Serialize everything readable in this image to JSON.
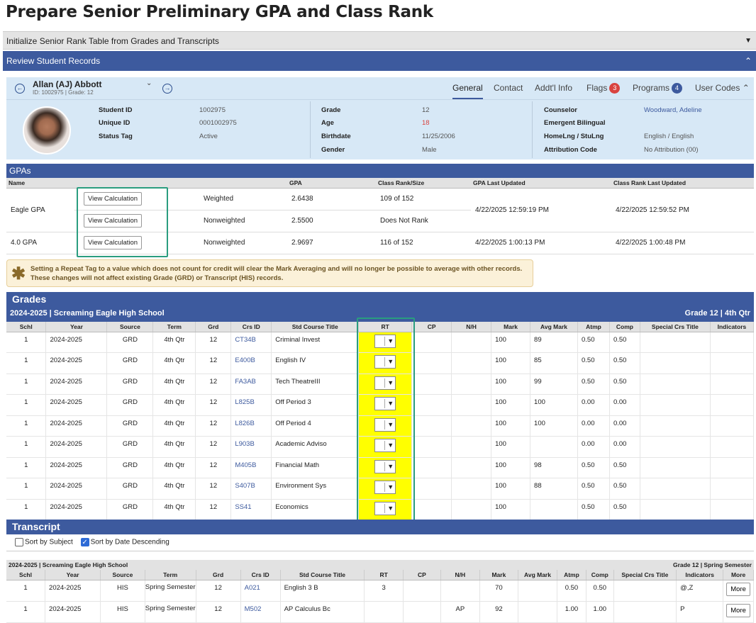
{
  "page_title": "Prepare Senior Preliminary GPA and Class Rank",
  "init_section": {
    "label": "Initialize Senior Rank Table from Grades and Transcripts",
    "icon": "chevron-down-icon"
  },
  "review_section": {
    "label": "Review Student Records",
    "icon": "chevron-up-icon"
  },
  "student": {
    "name": "Allan (AJ) Abbott",
    "sub": "ID: 1002975 |  Grade: 12",
    "tabs": [
      {
        "label": "General",
        "active": true
      },
      {
        "label": "Contact"
      },
      {
        "label": "Addt'l Info"
      },
      {
        "label": "Flags",
        "badge": "3",
        "badge_color": "#d9433f"
      },
      {
        "label": "Programs",
        "badge": "4",
        "badge_color": "#3d5a9e"
      },
      {
        "label": "User Codes"
      }
    ],
    "col1": [
      {
        "label": "Student ID",
        "value": "1002975"
      },
      {
        "label": "Unique ID",
        "value": "0001002975"
      },
      {
        "label": "Status Tag",
        "value": "Active"
      }
    ],
    "col2": [
      {
        "label": "Grade",
        "value": "12"
      },
      {
        "label": "Age",
        "value": "18"
      },
      {
        "label": "Birthdate",
        "value": "11/25/2006"
      },
      {
        "label": "Gender",
        "value": "Male"
      }
    ],
    "col3": [
      {
        "label": "Counselor",
        "value": "Woodward, Adeline"
      },
      {
        "label": "Emergent Bilingual",
        "value": ""
      },
      {
        "label": "HomeLng / StuLng",
        "value": "English / English"
      },
      {
        "label": "Attribution Code",
        "value": "No Attribution (00)"
      }
    ],
    "age_color": "#d9433f",
    "counselor_color": "#3d5a9e"
  },
  "gpas": {
    "title": "GPAs",
    "headers": [
      "Name",
      "",
      "",
      "GPA",
      "Class Rank/Size",
      "GPA Last Updated",
      "Class Rank Last Updated"
    ],
    "button_label": "View Calculation",
    "rows": [
      {
        "name": "Eagle GPA",
        "type": "Weighted",
        "gpa": "2.6438",
        "rank": "109 of 152",
        "gpa_updated": "4/22/2025 12:59:19 PM",
        "rank_updated": "4/22/2025 12:59:52 PM"
      },
      {
        "name": "",
        "type": "Nonweighted",
        "gpa": "2.5500",
        "rank": "Does Not Rank",
        "gpa_updated": "",
        "rank_updated": ""
      },
      {
        "name": "4.0 GPA",
        "type": "Nonweighted",
        "gpa": "2.9697",
        "rank": "116 of 152",
        "gpa_updated": "4/22/2025 1:00:13 PM",
        "rank_updated": "4/22/2025 1:00:48 PM"
      }
    ]
  },
  "notice": {
    "line1": "Setting a Repeat Tag to a value which does not count for credit will clear the Mark Averaging and will no longer be possible to average with other records.",
    "line2": "These changes will not affect existing Grade (GRD) or Transcript (HIS) records."
  },
  "grades": {
    "title": "Grades",
    "subtitle_left": "2024-2025 | Screaming Eagle High School",
    "subtitle_right": "Grade 12 | 4th Qtr",
    "headers": [
      "Schl",
      "Year",
      "Source",
      "Term",
      "Grd",
      "Crs ID",
      "Std Course Title",
      "RT",
      "CP",
      "N/H",
      "Mark",
      "Avg Mark",
      "Atmp",
      "Comp",
      "Special Crs Title",
      "Indicators"
    ],
    "rows": [
      [
        "1",
        "2024-2025",
        "GRD",
        "4th Qtr",
        "12",
        "CT34B",
        "Criminal Invest",
        "",
        "",
        "",
        "100",
        "89",
        "0.50",
        "0.50",
        "",
        ""
      ],
      [
        "1",
        "2024-2025",
        "GRD",
        "4th Qtr",
        "12",
        "E400B",
        "English IV",
        "",
        "",
        "",
        "100",
        "85",
        "0.50",
        "0.50",
        "",
        ""
      ],
      [
        "1",
        "2024-2025",
        "GRD",
        "4th Qtr",
        "12",
        "FA3AB",
        "Tech TheatreIII",
        "",
        "",
        "",
        "100",
        "99",
        "0.50",
        "0.50",
        "",
        ""
      ],
      [
        "1",
        "2024-2025",
        "GRD",
        "4th Qtr",
        "12",
        "L825B",
        "Off Period 3",
        "",
        "",
        "",
        "100",
        "100",
        "0.00",
        "0.00",
        "",
        ""
      ],
      [
        "1",
        "2024-2025",
        "GRD",
        "4th Qtr",
        "12",
        "L826B",
        "Off Period 4",
        "",
        "",
        "",
        "100",
        "100",
        "0.00",
        "0.00",
        "",
        ""
      ],
      [
        "1",
        "2024-2025",
        "GRD",
        "4th Qtr",
        "12",
        "L903B",
        "Academic Adviso",
        "",
        "",
        "",
        "100",
        "",
        "0.00",
        "0.00",
        "",
        ""
      ],
      [
        "1",
        "2024-2025",
        "GRD",
        "4th Qtr",
        "12",
        "M405B",
        "Financial Math",
        "",
        "",
        "",
        "100",
        "98",
        "0.50",
        "0.50",
        "",
        ""
      ],
      [
        "1",
        "2024-2025",
        "GRD",
        "4th Qtr",
        "12",
        "S407B",
        "Environment Sys",
        "",
        "",
        "",
        "100",
        "88",
        "0.50",
        "0.50",
        "",
        ""
      ],
      [
        "1",
        "2024-2025",
        "GRD",
        "4th Qtr",
        "12",
        "SS41",
        "Economics",
        "",
        "",
        "",
        "100",
        "",
        "0.50",
        "0.50",
        "",
        ""
      ]
    ]
  },
  "transcript": {
    "title": "Transcript",
    "sort_subject": "Sort by Subject",
    "sort_date": "Sort by Date Descending",
    "subtitle_left": "2024-2025 | Screaming Eagle High School",
    "subtitle_right": "Grade 12 | Spring Semester",
    "headers": [
      "Schl",
      "Year",
      "Source",
      "Term",
      "Grd",
      "Crs ID",
      "Std Course Title",
      "RT",
      "CP",
      "N/H",
      "Mark",
      "Avg Mark",
      "Atmp",
      "Comp",
      "Special Crs Title",
      "Indicators",
      "More"
    ],
    "more_label": "More",
    "rows": [
      [
        "1",
        "2024-2025",
        "HIS",
        "Spring Semester",
        "12",
        "A021",
        "English 3 B",
        "3",
        "",
        "",
        "70",
        "",
        "0.50",
        "0.50",
        "",
        "@,Z"
      ],
      [
        "1",
        "2024-2025",
        "HIS",
        "Spring Semester",
        "12",
        "M502",
        "AP Calculus Bc",
        "",
        "",
        "AP",
        "92",
        "",
        "1.00",
        "1.00",
        "",
        "P"
      ]
    ]
  }
}
